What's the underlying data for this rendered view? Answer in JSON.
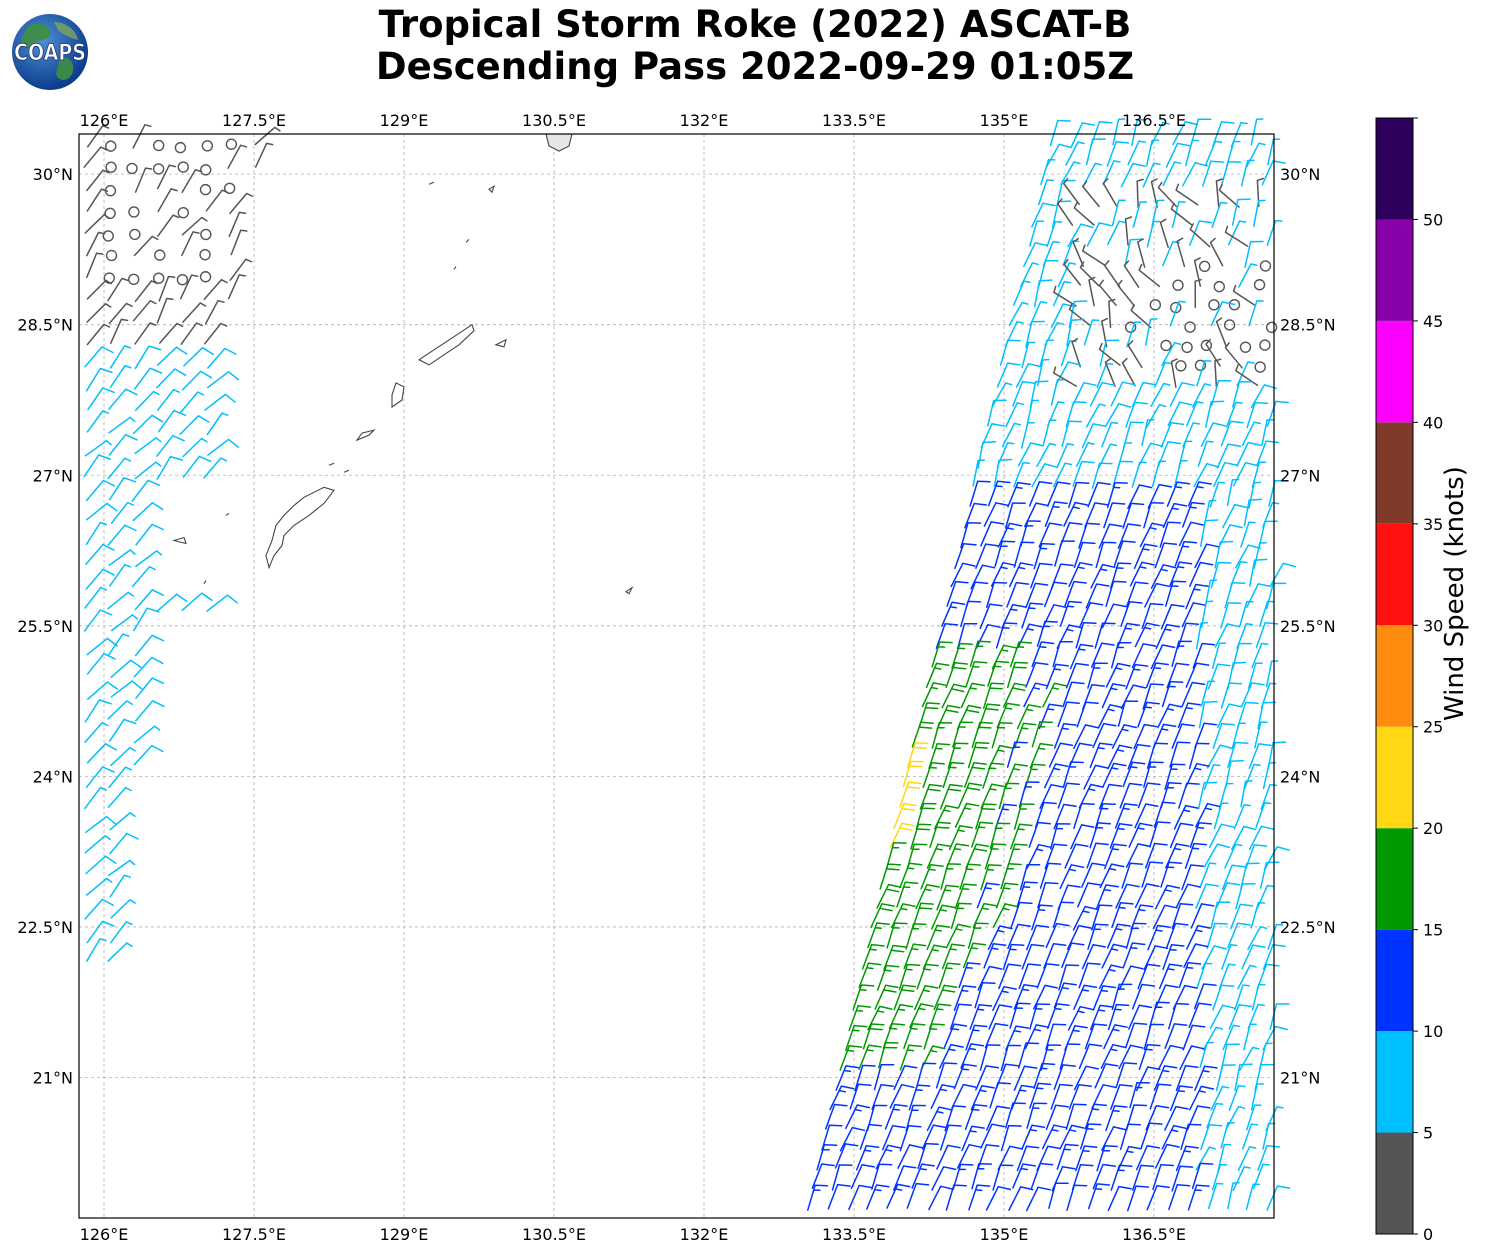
{
  "header": {
    "title_line1": "Tropical Storm Roke (2022) ASCAT-B",
    "title_line2": "Descending Pass 2022-09-29 01:05Z",
    "logo_text": "COAPS"
  },
  "map": {
    "lon_ticks": [
      "126°E",
      "127.5°E",
      "129°E",
      "130.5°E",
      "132°E",
      "133.5°E",
      "135°E",
      "136.5°E"
    ],
    "lat_ticks": [
      "30°N",
      "28.5°N",
      "27°N",
      "25.5°N",
      "24°N",
      "22.5°N",
      "21°N"
    ],
    "lon_range": [
      125.75,
      137.7
    ],
    "lat_range": [
      19.6,
      30.4
    ],
    "grid": true,
    "coastline_color": "#444444"
  },
  "colorbar": {
    "label": "Wind Speed (knots)",
    "ticks": [
      "0",
      "5",
      "10",
      "15",
      "20",
      "25",
      "30",
      "35",
      "40",
      "45",
      "50"
    ],
    "bins": [
      {
        "from": 0,
        "to": 5,
        "color": "#555555"
      },
      {
        "from": 5,
        "to": 10,
        "color": "#00bfff"
      },
      {
        "from": 10,
        "to": 15,
        "color": "#0033ff"
      },
      {
        "from": 15,
        "to": 20,
        "color": "#009900"
      },
      {
        "from": 20,
        "to": 25,
        "color": "#ffd712"
      },
      {
        "from": 25,
        "to": 30,
        "color": "#ff8c0f"
      },
      {
        "from": 30,
        "to": 35,
        "color": "#ff1111"
      },
      {
        "from": 35,
        "to": 40,
        "color": "#7f3a2a"
      },
      {
        "from": 40,
        "to": 45,
        "color": "#ff00ff"
      },
      {
        "from": 45,
        "to": 50,
        "color": "#8800aa"
      },
      {
        "from": 50,
        "to": 55,
        "color": "#2e005e"
      }
    ]
  }
}
